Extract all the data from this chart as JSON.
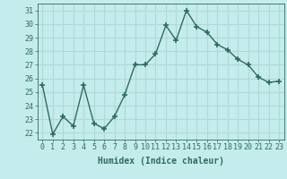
{
  "x": [
    0,
    1,
    2,
    3,
    4,
    5,
    6,
    7,
    8,
    9,
    10,
    11,
    12,
    13,
    14,
    15,
    16,
    17,
    18,
    19,
    20,
    21,
    22,
    23
  ],
  "y": [
    25.5,
    21.9,
    23.2,
    22.5,
    25.5,
    22.7,
    22.3,
    23.2,
    24.8,
    27.0,
    27.0,
    27.8,
    29.9,
    28.8,
    31.0,
    29.8,
    29.4,
    28.5,
    28.1,
    27.4,
    27.0,
    26.1,
    25.7,
    25.8
  ],
  "line_color": "#2e6b5e",
  "marker": "+",
  "marker_size": 4,
  "bg_color": "#c5ecec",
  "grid_color": "#b0d8d8",
  "xlabel": "Humidex (Indice chaleur)",
  "ylim": [
    21.5,
    31.5
  ],
  "xlim": [
    -0.5,
    23.5
  ],
  "yticks": [
    22,
    23,
    24,
    25,
    26,
    27,
    28,
    29,
    30,
    31
  ],
  "xtick_labels": [
    "0",
    "1",
    "2",
    "3",
    "4",
    "5",
    "6",
    "7",
    "8",
    "9",
    "10",
    "11",
    "12",
    "13",
    "14",
    "15",
    "16",
    "17",
    "18",
    "19",
    "20",
    "21",
    "22",
    "23"
  ],
  "xlabel_fontsize": 7,
  "tick_fontsize": 6,
  "line_width": 1.0
}
